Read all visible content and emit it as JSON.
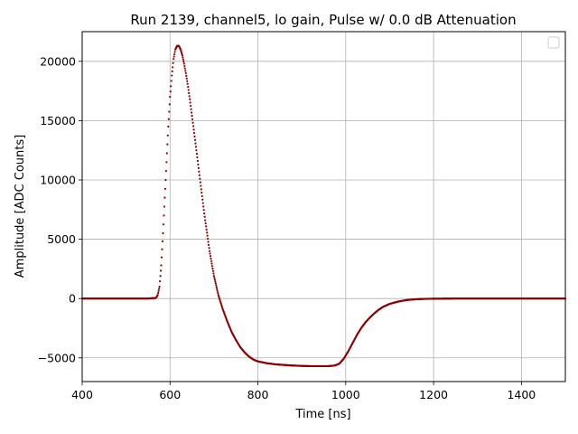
{
  "chart_data": {
    "type": "scatter",
    "title": "Run 2139, channel5, lo gain, Pulse w/ 0.0 dB Attenuation",
    "xlabel": "Time [ns]",
    "ylabel": "Amplitude [ADC Counts]",
    "xlim": [
      400,
      1500
    ],
    "ylim": [
      -7000,
      22500
    ],
    "xticks": [
      400,
      600,
      800,
      1000,
      1200,
      1400
    ],
    "yticks": [
      -5000,
      0,
      5000,
      10000,
      15000,
      20000
    ],
    "xtick_labels": [
      "400",
      "600",
      "800",
      "1000",
      "1200",
      "1400"
    ],
    "ytick_labels": [
      "−5000",
      "0",
      "5000",
      "10000",
      "15000",
      "20000"
    ],
    "grid": true,
    "legend": {
      "placement": "top-right",
      "entries": []
    },
    "series": [
      {
        "color": "#8b0000",
        "x": [
          400,
          450,
          500,
          550,
          568,
          572,
          576,
          580,
          584,
          588,
          592,
          596,
          600,
          604,
          608,
          612,
          616,
          620,
          624,
          628,
          632,
          636,
          640,
          645,
          650,
          660,
          670,
          680,
          690,
          700,
          710,
          720,
          730,
          740,
          750,
          760,
          770,
          780,
          790,
          800,
          820,
          840,
          860,
          880,
          900,
          920,
          940,
          960,
          975,
          985,
          995,
          1005,
          1015,
          1025,
          1035,
          1045,
          1055,
          1065,
          1075,
          1085,
          1100,
          1120,
          1140,
          1160,
          1180,
          1200,
          1250,
          1300,
          1350,
          1400,
          1450,
          1500
        ],
        "y": [
          0,
          0,
          0,
          0,
          50,
          300,
          1000,
          2800,
          5500,
          8500,
          11500,
          14500,
          17000,
          18800,
          20200,
          21000,
          21300,
          21300,
          21000,
          20500,
          19800,
          19000,
          18100,
          16800,
          15400,
          12500,
          9500,
          6600,
          4000,
          1900,
          300,
          -900,
          -1900,
          -2800,
          -3500,
          -4100,
          -4550,
          -4900,
          -5150,
          -5300,
          -5450,
          -5550,
          -5600,
          -5650,
          -5680,
          -5700,
          -5700,
          -5700,
          -5650,
          -5500,
          -5100,
          -4500,
          -3800,
          -3100,
          -2500,
          -2000,
          -1600,
          -1250,
          -950,
          -700,
          -450,
          -250,
          -120,
          -60,
          -30,
          -15,
          0,
          0,
          0,
          0,
          0,
          0
        ]
      }
    ]
  }
}
